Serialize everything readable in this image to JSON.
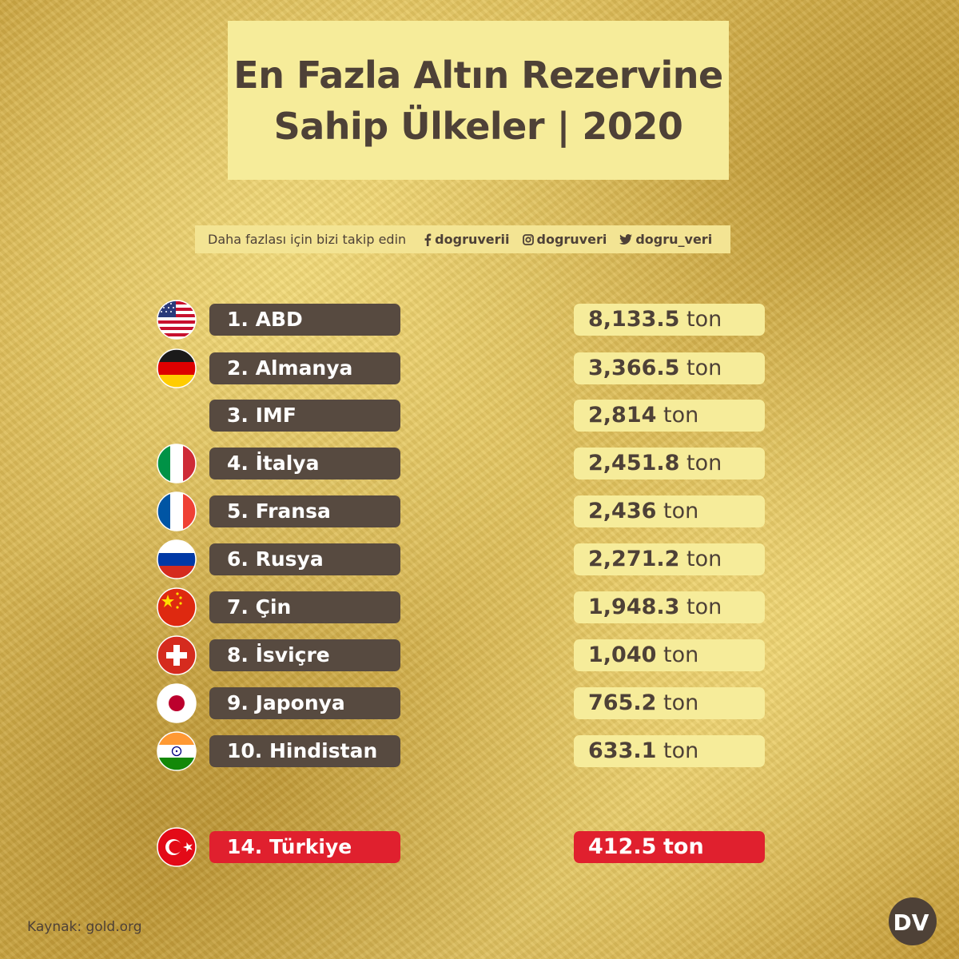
{
  "title_line1": "En Fazla Altın Rezervine",
  "title_line2": "Sahip Ülkeler | 2020",
  "follow": {
    "text": "Daha fazlası için bizi takip edin",
    "facebook": "dogruverii",
    "instagram": "dogruveri",
    "twitter": "dogru_veri"
  },
  "unit": "ton",
  "source": "Kaynak: gold.org",
  "logo_text": "DV",
  "colors": {
    "dark_pill": "#574a40",
    "light_pill": "#f6ec9a",
    "highlight": "#e0202e",
    "text_dark": "#4e4137"
  },
  "chart_data": {
    "type": "table",
    "title": "En Fazla Altın Rezervine Sahip Ülkeler | 2020",
    "columns": [
      "rank",
      "country",
      "gold_reserve_tons"
    ],
    "rows": [
      {
        "label": "1.  ABD",
        "rank": 1,
        "country": "ABD",
        "value": "8,133.5",
        "unit": "ton",
        "flag": "usa-flag-icon"
      },
      {
        "label": "2. Almanya",
        "rank": 2,
        "country": "Almanya",
        "value": "3,366.5",
        "unit": "ton",
        "flag": "germany-flag-icon"
      },
      {
        "label": "3. IMF",
        "rank": 3,
        "country": "IMF",
        "value": "2,814",
        "unit": "ton",
        "flag": ""
      },
      {
        "label": "4. İtalya",
        "rank": 4,
        "country": "İtalya",
        "value": "2,451.8",
        "unit": "ton",
        "flag": "italy-flag-icon"
      },
      {
        "label": "5. Fransa",
        "rank": 5,
        "country": "Fransa",
        "value": "2,436",
        "unit": "ton",
        "flag": "france-flag-icon"
      },
      {
        "label": "6. Rusya",
        "rank": 6,
        "country": "Rusya",
        "value": "2,271.2",
        "unit": "ton",
        "flag": "russia-flag-icon"
      },
      {
        "label": "7. Çin",
        "rank": 7,
        "country": "Çin",
        "value": "1,948.3",
        "unit": "ton",
        "flag": "china-flag-icon"
      },
      {
        "label": "8. İsviçre",
        "rank": 8,
        "country": "İsviçre",
        "value": "1,040",
        "unit": "ton",
        "flag": "switzerland-flag-icon"
      },
      {
        "label": "9. Japonya",
        "rank": 9,
        "country": "Japonya",
        "value": "765.2",
        "unit": "ton",
        "flag": "japan-flag-icon"
      },
      {
        "label": "10. Hindistan",
        "rank": 10,
        "country": "Hindistan",
        "value": "633.1",
        "unit": "ton",
        "flag": "india-flag-icon"
      },
      {
        "label": "14. Türkiye",
        "rank": 14,
        "country": "Türkiye",
        "value": "412.5",
        "unit": "ton",
        "flag": "turkey-flag-icon",
        "highlight": true
      }
    ]
  }
}
